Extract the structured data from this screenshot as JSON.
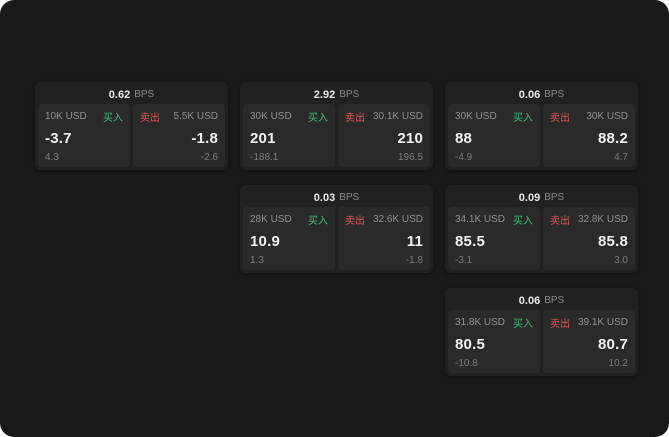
{
  "colors": {
    "background": "#191919",
    "card": "#212121",
    "panel": "#2a2a2a",
    "buy": "#3fbf77",
    "sell": "#e05656"
  },
  "labels": {
    "bps": "BPS",
    "buy": "买入",
    "sell": "卖出"
  },
  "cards": [
    {
      "spread": "0.62",
      "buy": {
        "size": "10K USD",
        "price": "-3.7",
        "delta": "4.3"
      },
      "sell": {
        "size": "5.5K USD",
        "price": "-1.8",
        "delta": "-2.6"
      }
    },
    {
      "spread": "2.92",
      "buy": {
        "size": "30K USD",
        "price": "201",
        "delta": "-188.1"
      },
      "sell": {
        "size": "30.1K USD",
        "price": "210",
        "delta": "196.5"
      }
    },
    {
      "spread": "0.06",
      "buy": {
        "size": "30K USD",
        "price": "88",
        "delta": "-4.9"
      },
      "sell": {
        "size": "30K USD",
        "price": "88.2",
        "delta": "4.7"
      }
    },
    {
      "spread": "0.03",
      "buy": {
        "size": "28K USD",
        "price": "10.9",
        "delta": "1.3"
      },
      "sell": {
        "size": "32.6K USD",
        "price": "11",
        "delta": "-1.8"
      }
    },
    {
      "spread": "0.09",
      "buy": {
        "size": "34.1K USD",
        "price": "85.5",
        "delta": "-3.1"
      },
      "sell": {
        "size": "32.8K USD",
        "price": "85.8",
        "delta": "3.0"
      }
    },
    {
      "spread": "0.06",
      "buy": {
        "size": "31.8K USD",
        "price": "80.5",
        "delta": "-10.8"
      },
      "sell": {
        "size": "39.1K USD",
        "price": "80.7",
        "delta": "10.2"
      }
    }
  ]
}
